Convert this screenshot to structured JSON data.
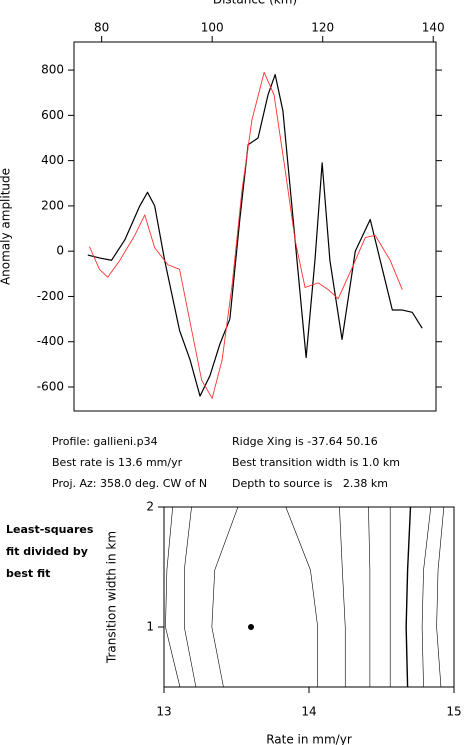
{
  "chart_data": [
    {
      "type": "line",
      "xlabel": "Distance (km)",
      "ylabel": "Anomaly amplitude",
      "xlim": [
        75,
        140.5
      ],
      "ylim": [
        -706,
        924
      ],
      "xticks": [
        80,
        100,
        120,
        140
      ],
      "yticks": [
        -600,
        -400,
        -200,
        0,
        200,
        400,
        600,
        800
      ],
      "series": [
        {
          "color": "#000000",
          "x": [
            77.5,
            79.6,
            81.8,
            84.2,
            86.9,
            88.3,
            89.6,
            91.4,
            94.1,
            96,
            97.8,
            99.6,
            101.4,
            103.2,
            105,
            106.5,
            108.3,
            110.1,
            111.4,
            112.8,
            115,
            117,
            118.6,
            119.9,
            121.3,
            123.5,
            125.9,
            128.6,
            130.4,
            132.6,
            134.4,
            136.2,
            138
          ],
          "values": [
            -17,
            -30,
            -40,
            50,
            200,
            260,
            200,
            -40,
            -350,
            -480,
            -640,
            -550,
            -410,
            -300,
            140,
            470,
            500,
            690,
            780,
            620,
            50,
            -470,
            -40,
            390,
            -40,
            -390,
            0,
            140,
            -40,
            -260,
            -260,
            -270,
            -340
          ]
        },
        {
          "color": "#ff3030",
          "x": [
            77.8,
            79.6,
            81.1,
            83.3,
            86,
            87.8,
            89.6,
            92,
            94.1,
            96.3,
            98.1,
            100,
            101.8,
            103.6,
            105.4,
            107.2,
            109.4,
            111.2,
            113.2,
            115,
            116.8,
            119.2,
            121,
            122.8,
            125.3,
            127.7,
            129.5,
            132.2,
            134.4
          ],
          "values": [
            20,
            -80,
            -115,
            -40,
            70,
            160,
            15,
            -60,
            -80,
            -350,
            -570,
            -650,
            -480,
            -150,
            270,
            580,
            790,
            690,
            360,
            50,
            -160,
            -140,
            -170,
            -210,
            -75,
            60,
            70,
            -40,
            -170
          ]
        }
      ]
    },
    {
      "type": "contour",
      "xlabel": "Rate in mm/yr",
      "ylabel": "Transition width in km",
      "annotation": [
        "Least-squares",
        "fit divided by",
        "best fit"
      ],
      "xlim": [
        13,
        15
      ],
      "ylim": [
        0.5,
        2
      ],
      "xticks": [
        13,
        14,
        15
      ],
      "yticks": [
        1,
        2
      ],
      "contour_y": [
        2,
        1.475,
        1,
        0.5
      ],
      "contours": [
        {
          "x": [
            13.06,
            13.02,
            13.01,
            13.11
          ]
        },
        {
          "x": [
            13.19,
            13.14,
            13.14,
            13.22
          ]
        },
        {
          "x": [
            13.51,
            13.35,
            13.33,
            13.41
          ]
        },
        {
          "x": [
            13.84,
            14.01,
            14.06,
            14.06
          ]
        },
        {
          "x": [
            14.21,
            14.23,
            14.25,
            14.25
          ]
        },
        {
          "x": [
            14.41,
            14.42,
            14.42,
            14.42
          ]
        },
        {
          "x": [
            14.56,
            14.56,
            14.56,
            14.56
          ]
        },
        {
          "x": [
            14.7,
            14.68,
            14.67,
            14.68
          ]
        },
        {
          "x": [
            14.84,
            14.79,
            14.78,
            14.79
          ]
        },
        {
          "x": [
            14.93,
            14.89,
            14.88,
            14.91
          ]
        }
      ],
      "point": {
        "x": 13.6,
        "y": 1.0
      }
    }
  ],
  "info": [
    [
      "Profile: gallieni.p34",
      "Ridge Xing is -37.64 50.16"
    ],
    [
      "Best rate is 13.6 mm/yr",
      "Best transition width is 1.0 km"
    ],
    [
      "Proj. Az: 358.0 deg. CW of N",
      "Depth to source is   2.38 km"
    ]
  ]
}
